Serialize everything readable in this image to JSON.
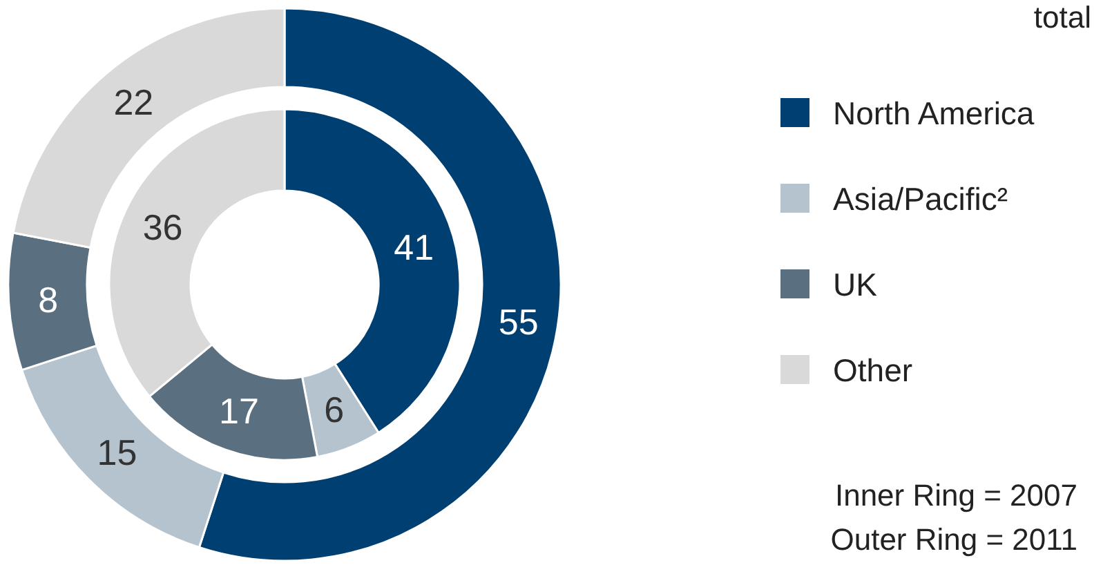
{
  "chart_data": {
    "type": "donut",
    "categories": [
      "North America",
      "Asia/Pacific²",
      "UK",
      "Other"
    ],
    "colors": [
      "#003f72",
      "#b4c3ce",
      "#5a6f80",
      "#d9d9d9"
    ],
    "series": [
      {
        "values": [
          41,
          6,
          17,
          36
        ]
      },
      {
        "values": [
          55,
          15,
          8,
          22
        ]
      }
    ],
    "data_labels": true,
    "legend": "right",
    "annotations": [
      "total",
      "Inner Ring = 2007",
      "Outer Ring = 2011"
    ]
  }
}
